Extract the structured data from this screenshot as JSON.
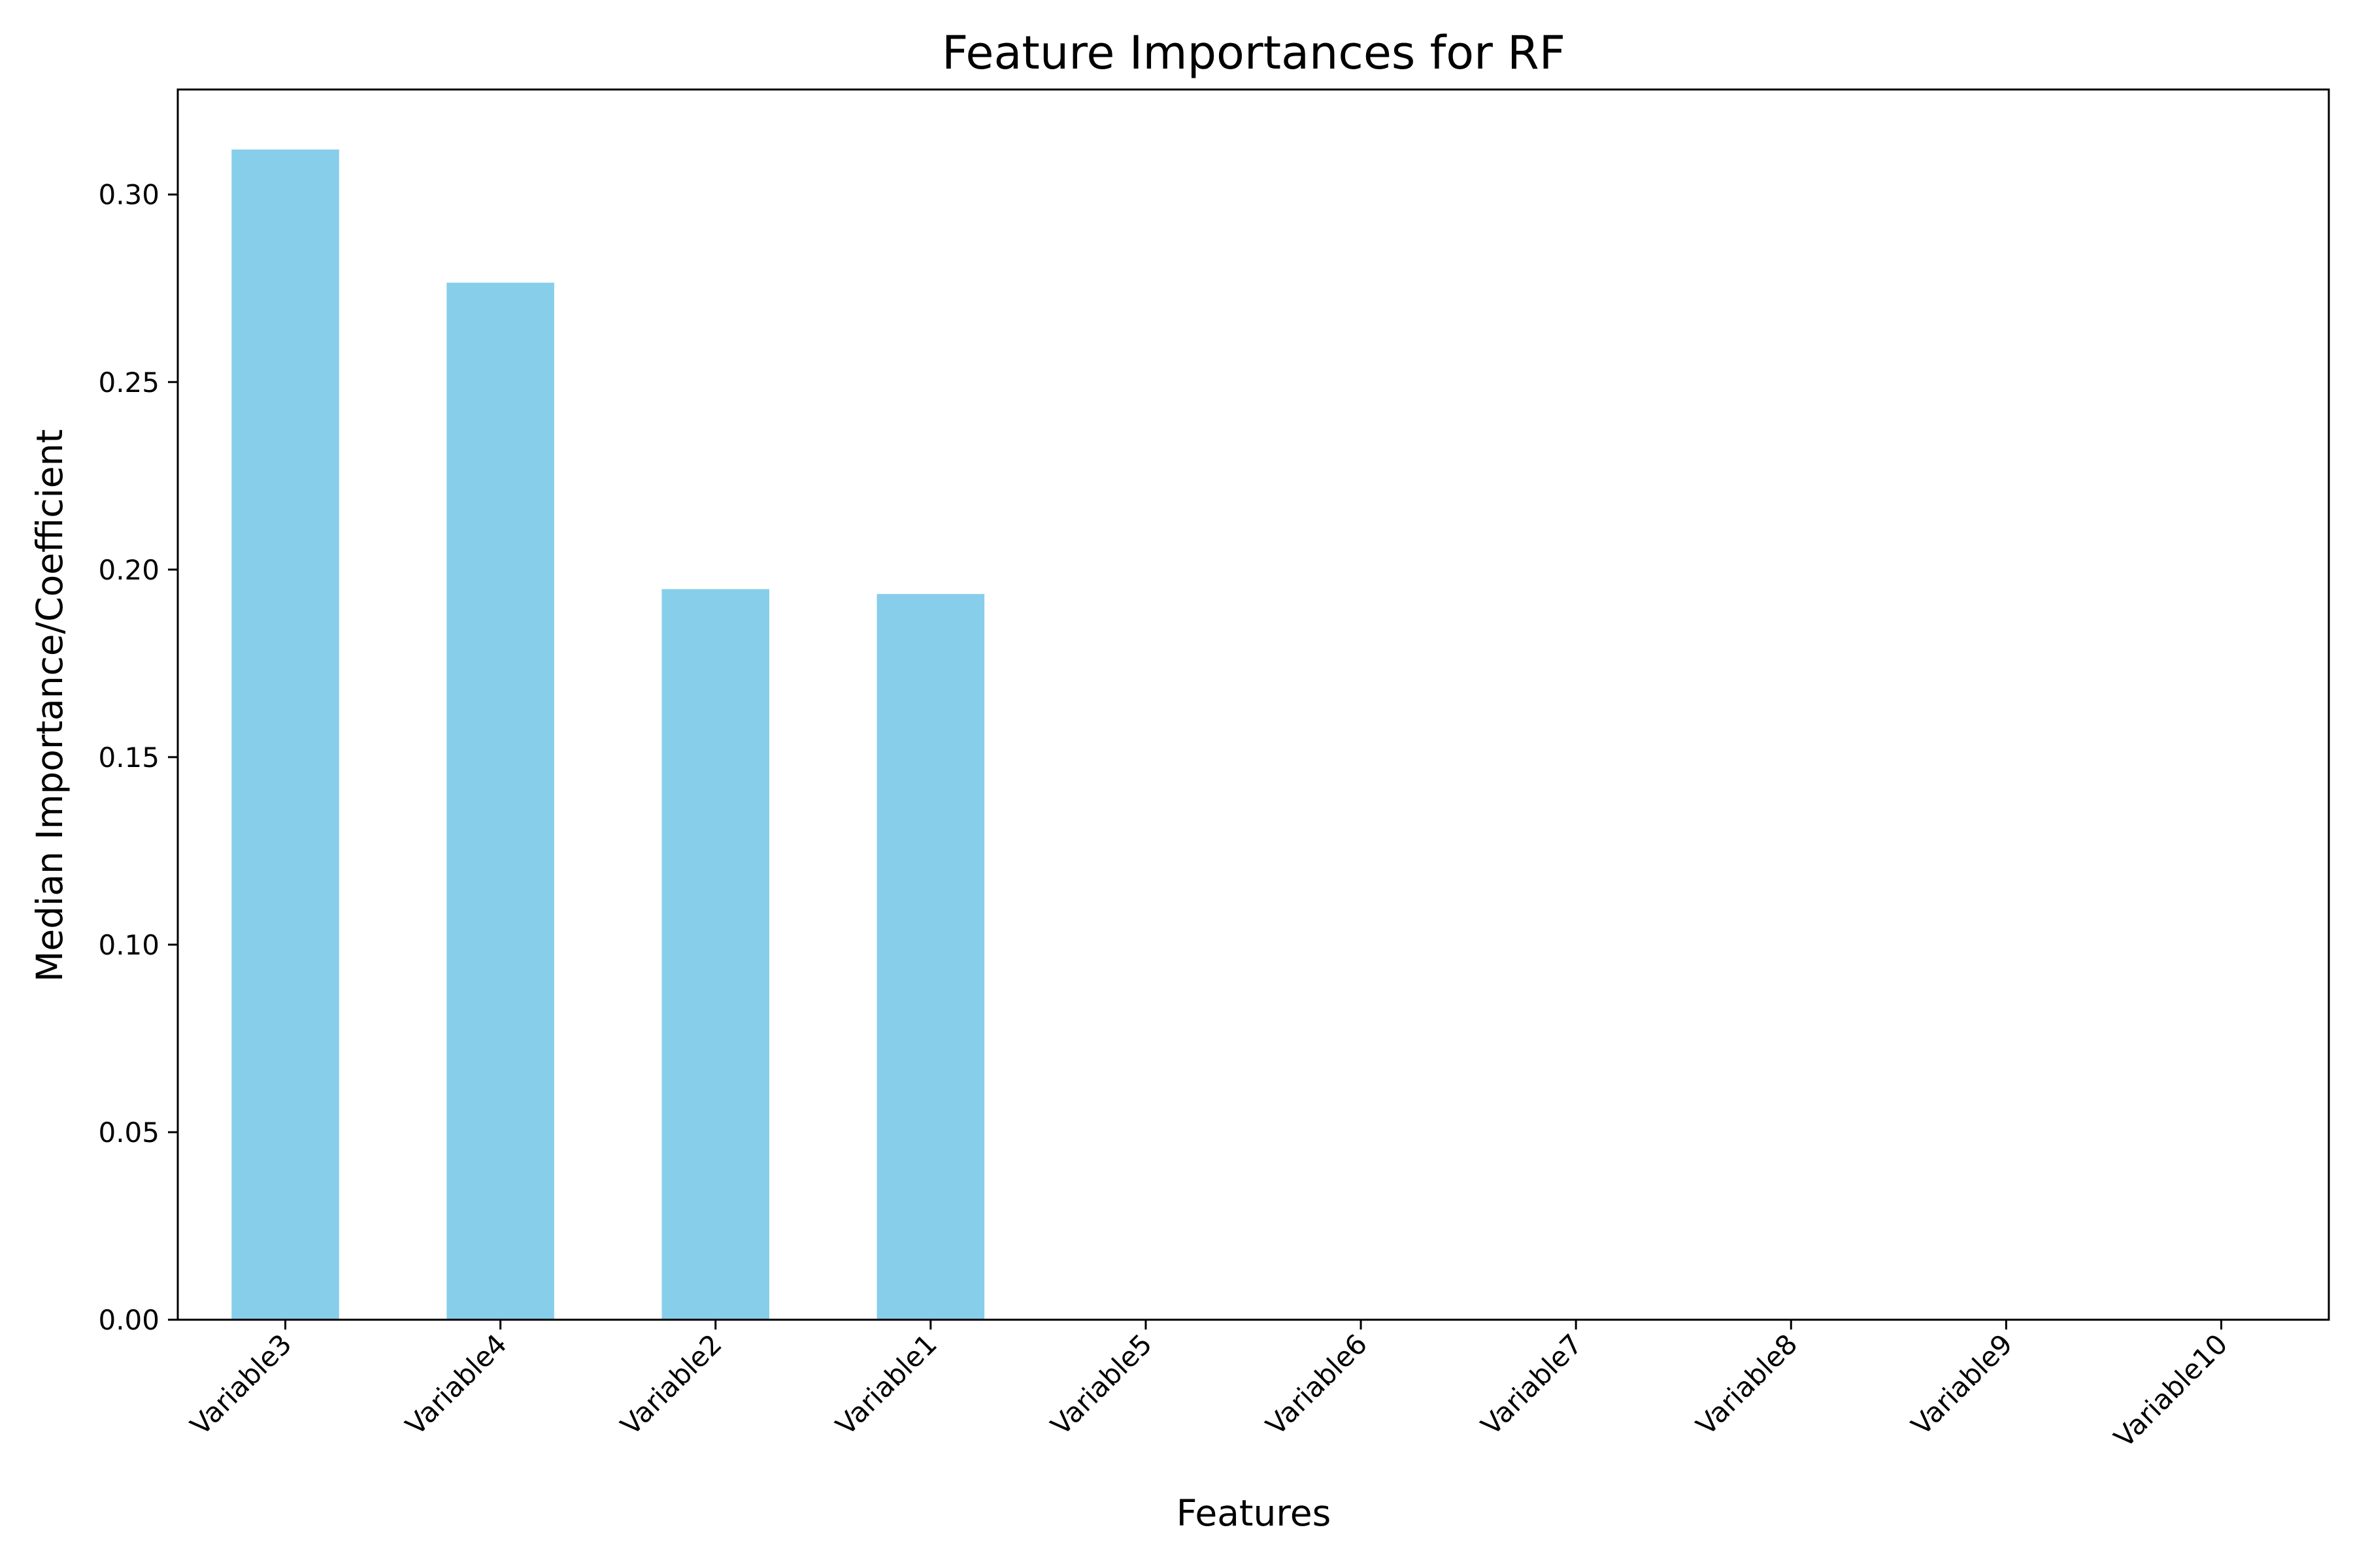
{
  "chart_data": {
    "type": "bar",
    "title": "Feature Importances for RF",
    "xlabel": "Features",
    "ylabel": "Median Importance/Coefficient",
    "categories": [
      "Variable3",
      "Variable4",
      "Variable2",
      "Variable1",
      "Variable5",
      "Variable6",
      "Variable7",
      "Variable8",
      "Variable9",
      "Variable10"
    ],
    "values": [
      0.312,
      0.2765,
      0.1948,
      0.1935,
      0.0,
      0.0,
      0.0,
      0.0,
      0.0,
      0.0
    ],
    "ylim": [
      0,
      0.328
    ],
    "yticks": [
      "0.00",
      "0.05",
      "0.10",
      "0.15",
      "0.20",
      "0.25",
      "0.30"
    ],
    "grid": false,
    "bar_color": "#87ceeb",
    "axis_color": "#000000"
  }
}
